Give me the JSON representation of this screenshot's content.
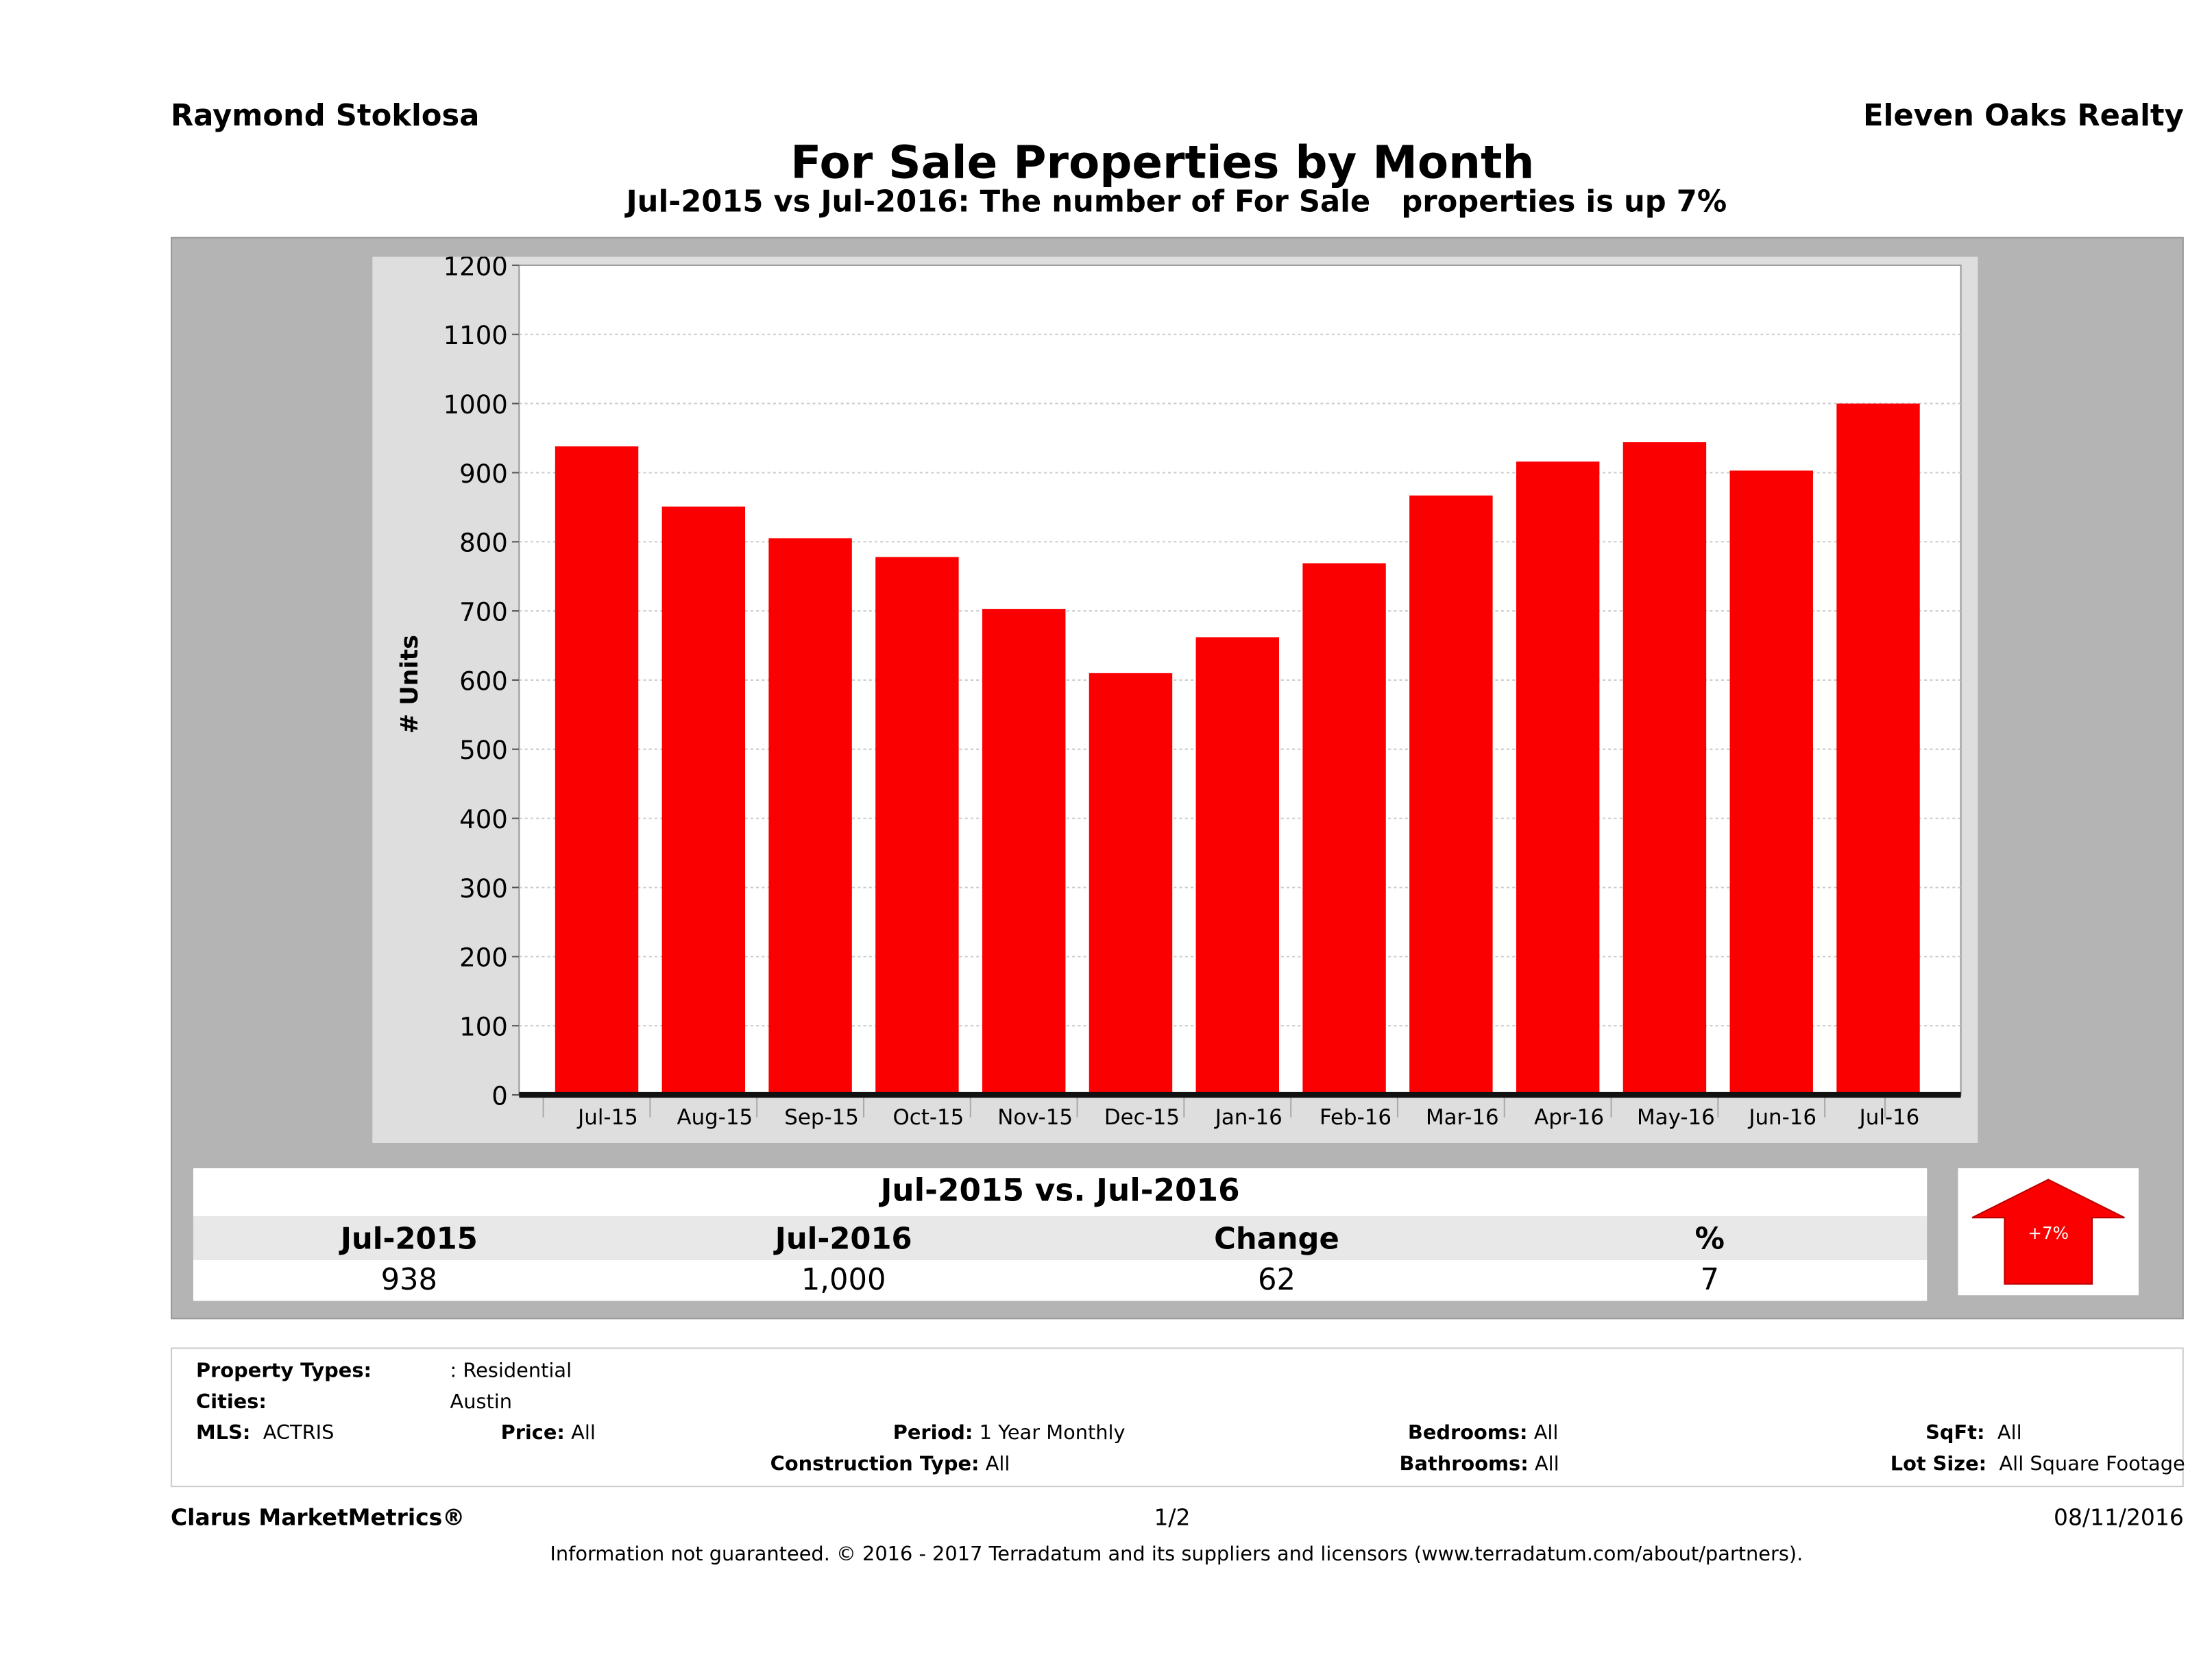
{
  "header": {
    "agent": "Raymond Stoklosa",
    "brokerage": "Eleven Oaks Realty",
    "title": "For Sale Properties by Month",
    "subtitle": "Jul-2015 vs Jul-2016: The number of For Sale   properties is up 7%"
  },
  "chart_data": {
    "type": "bar",
    "title": "For Sale Properties by Month",
    "xlabel": "",
    "ylabel": "# Units",
    "ylim": [
      0,
      1200
    ],
    "yticks": [
      0,
      100,
      200,
      300,
      400,
      500,
      600,
      700,
      800,
      900,
      1000,
      1100,
      1200
    ],
    "grid": true,
    "bar_color": "#fa0000",
    "categories": [
      "Jul-15",
      "Aug-15",
      "Sep-15",
      "Oct-15",
      "Nov-15",
      "Dec-15",
      "Jan-16",
      "Feb-16",
      "Mar-16",
      "Apr-16",
      "May-16",
      "Jun-16",
      "Jul-16"
    ],
    "values": [
      938,
      851,
      805,
      778,
      703,
      610,
      662,
      769,
      867,
      916,
      944,
      903,
      1000
    ]
  },
  "summary": {
    "heading": "Jul-2015 vs. Jul-2016",
    "columns": [
      "Jul-2015",
      "Jul-2016",
      "Change",
      "%"
    ],
    "values": [
      "938",
      "1,000",
      "62",
      "7"
    ],
    "badge": "+7%",
    "badge_icon": "up-arrow-icon",
    "badge_color": "#fa0000"
  },
  "filters": {
    "property_types_label": "Property Types:",
    "property_types": ": Residential",
    "cities_label": "Cities:",
    "cities": "Austin",
    "mls_label": "MLS:",
    "mls": "ACTRIS",
    "price_label": "Price:",
    "price": "All",
    "period_label": "Period:",
    "period": "1 Year Monthly",
    "bedrooms_label": "Bedrooms:",
    "bedrooms": "All",
    "sqft_label": "SqFt:",
    "sqft": "All",
    "construction_label": "Construction Type:",
    "construction": "All",
    "bathrooms_label": "Bathrooms:",
    "bathrooms": "All",
    "lot_label": "Lot Size:",
    "lot": "All Square Footage"
  },
  "footer": {
    "brand": "Clarus MarketMetrics®",
    "page": "1/2",
    "date": "08/11/2016",
    "disclaimer": "Information not guaranteed. © 2016 - 2017 Terradatum and its suppliers and licensors (www.terradatum.com/about/partners)."
  }
}
